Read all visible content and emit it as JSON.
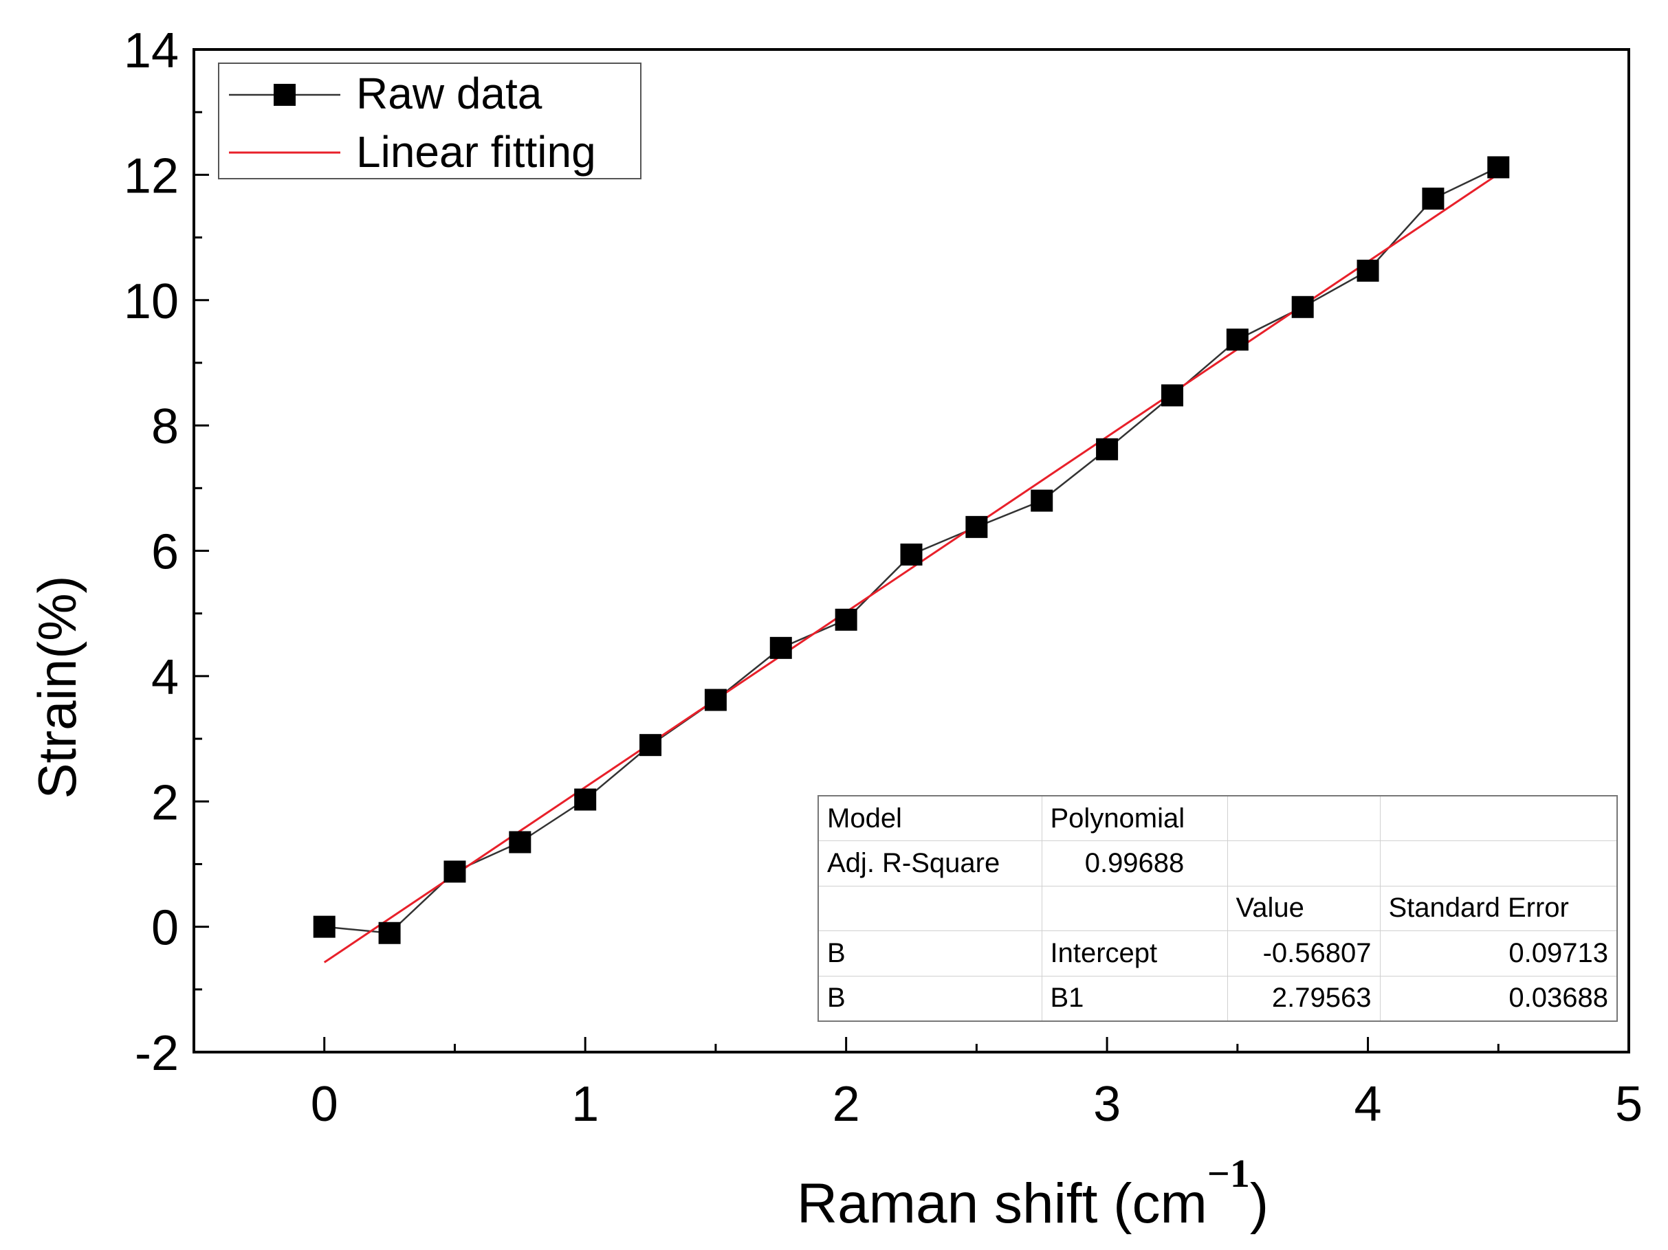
{
  "chart_data": {
    "type": "line",
    "title": "",
    "xlabel": "Raman shift (cm",
    "xlabel_superscript": "−1",
    "xlabel_close": ")",
    "ylabel": "Strain(%)",
    "xlim": [
      -0.5,
      5
    ],
    "ylim": [
      -2,
      14
    ],
    "xticks": [
      0,
      1,
      2,
      3,
      4,
      5
    ],
    "yticks": [
      -2,
      0,
      2,
      4,
      6,
      8,
      10,
      12,
      14
    ],
    "xtick_labels": [
      "0",
      "1",
      "2",
      "3",
      "4",
      "5"
    ],
    "ytick_labels": [
      "-2",
      "0",
      "2",
      "4",
      "6",
      "8",
      "10",
      "12",
      "14"
    ],
    "grid": false,
    "legend_position": "top-left",
    "series": [
      {
        "name": "Raw data",
        "kind": "line+square-markers",
        "color": "#000000",
        "line_color": "#333333",
        "x": [
          0,
          0.25,
          0.5,
          0.75,
          1.0,
          1.25,
          1.5,
          1.75,
          2.0,
          2.25,
          2.5,
          2.75,
          3.0,
          3.25,
          3.5,
          3.75,
          4.0,
          4.25,
          4.5
        ],
        "y": [
          0,
          -0.1,
          0.88,
          1.35,
          2.03,
          2.9,
          3.62,
          4.45,
          4.9,
          5.94,
          6.38,
          6.8,
          7.62,
          8.48,
          9.37,
          9.89,
          10.47,
          11.62,
          12.12
        ]
      },
      {
        "name": "Linear fitting",
        "kind": "line",
        "color": "#e8202a",
        "x": [
          0,
          4.5
        ],
        "y": [
          -0.56807,
          12.01227
        ],
        "intercept": -0.56807,
        "slope": 2.79563
      }
    ],
    "fit_table": {
      "rows": [
        [
          "Model",
          "Polynomial",
          "",
          ""
        ],
        [
          "Adj. R-Square",
          "0.99688",
          "",
          ""
        ],
        [
          "",
          "",
          "Value",
          "Standard Error"
        ],
        [
          "B",
          "Intercept",
          "-0.56807",
          "0.09713"
        ],
        [
          "B",
          "B1",
          "2.79563",
          "0.03688"
        ]
      ]
    }
  }
}
